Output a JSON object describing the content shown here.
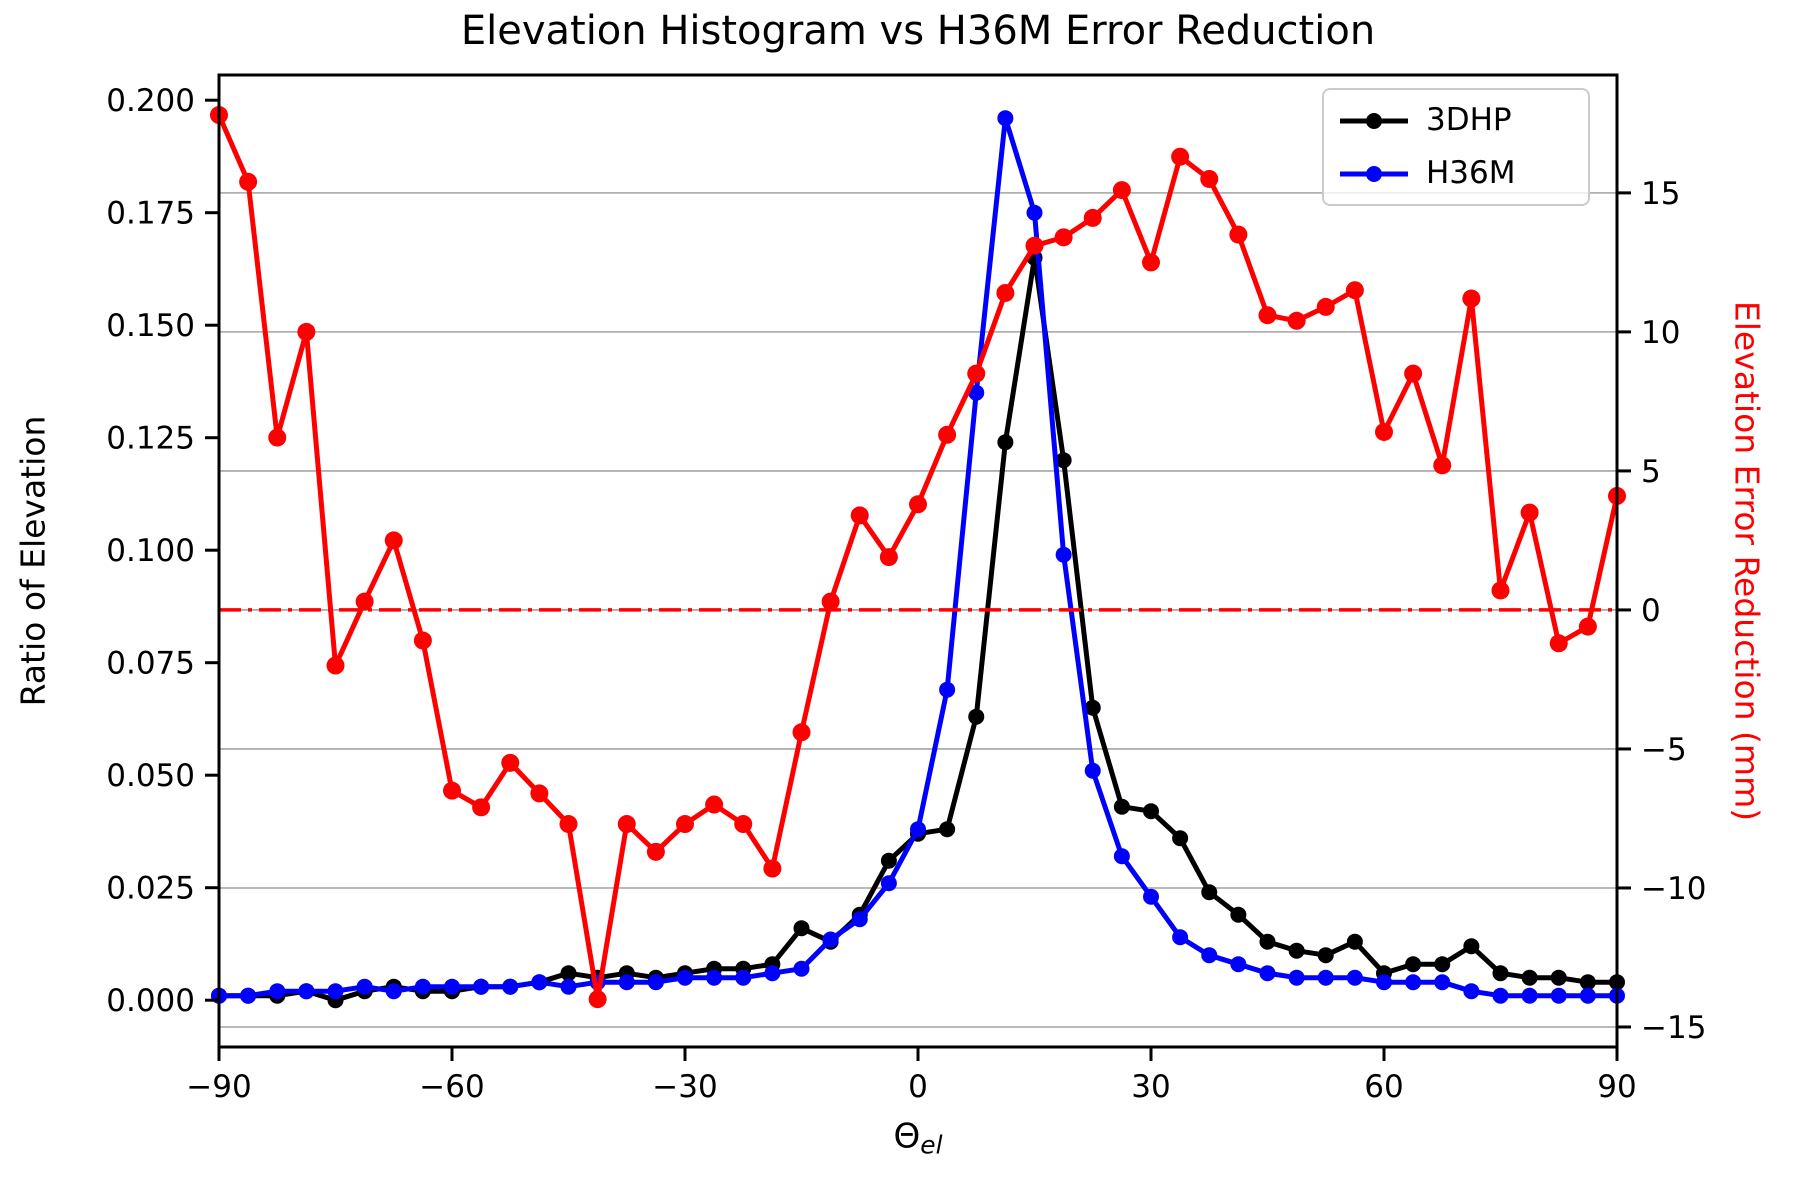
{
  "colors": {
    "series_3dhp": "#000000",
    "series_h36m": "#0000ff",
    "series_error": "#ff0000",
    "grid": "#b0b0b0",
    "axis": "#000000",
    "legend_border": "#cbcbcb",
    "background": "#ffffff"
  },
  "chart_data": {
    "type": "line",
    "title": "Elevation Histogram vs H36M Error Reduction",
    "xlabel": "Theta_el",
    "xlabel_base": "Θ",
    "xlabel_sub": "el",
    "ylabel_left": "Ratio of Elevation",
    "ylabel_right": "Elevation Error Reduction (mm)",
    "legend_position": "upper right",
    "grid": "horizontal gray lines at right-axis ticks",
    "x_range": [
      -90,
      90
    ],
    "y_left_range": [
      -0.0104,
      0.2056
    ],
    "y_right_range": [
      -15.72,
      19.24
    ],
    "x_tick_values": [
      -90,
      -60,
      -30,
      0,
      30,
      60,
      90
    ],
    "x_tick_labels": [
      "−90",
      "−60",
      "−30",
      "0",
      "30",
      "60",
      "90"
    ],
    "y_left_tick_values": [
      0.0,
      0.025,
      0.05,
      0.075,
      0.1,
      0.125,
      0.15,
      0.175,
      0.2
    ],
    "y_left_tick_labels": [
      "0.000",
      "0.025",
      "0.050",
      "0.075",
      "0.100",
      "0.125",
      "0.150",
      "0.175",
      "0.200"
    ],
    "y_right_tick_values": [
      -15,
      -10,
      -5,
      0,
      5,
      10,
      15
    ],
    "y_right_tick_labels": [
      "−15",
      "−10",
      "−5",
      "0",
      "5",
      "10",
      "15"
    ],
    "x": [
      -90,
      -86.25,
      -82.5,
      -78.75,
      -75,
      -71.25,
      -67.5,
      -63.75,
      -60,
      -56.25,
      -52.5,
      -48.75,
      -45,
      -41.25,
      -37.5,
      -33.75,
      -30,
      -26.25,
      -22.5,
      -18.75,
      -15,
      -11.25,
      -7.5,
      -3.75,
      0,
      3.75,
      7.5,
      11.25,
      15,
      18.75,
      22.5,
      26.25,
      30,
      33.75,
      37.5,
      41.25,
      45,
      48.75,
      52.5,
      56.25,
      60,
      63.75,
      67.5,
      71.25,
      75,
      78.75,
      82.5,
      86.25,
      90
    ],
    "series": [
      {
        "name": "3DHP",
        "axis": "left",
        "color": "#000000",
        "marker_radius": 8,
        "values": [
          0.001,
          0.001,
          0.001,
          0.002,
          0.0,
          0.002,
          0.003,
          0.002,
          0.002,
          0.003,
          0.003,
          0.004,
          0.006,
          0.005,
          0.006,
          0.005,
          0.006,
          0.007,
          0.007,
          0.008,
          0.016,
          0.013,
          0.019,
          0.031,
          0.037,
          0.038,
          0.063,
          0.124,
          0.165,
          0.12,
          0.065,
          0.043,
          0.042,
          0.036,
          0.024,
          0.019,
          0.013,
          0.011,
          0.01,
          0.013,
          0.006,
          0.008,
          0.008,
          0.012,
          0.006,
          0.005,
          0.005,
          0.004,
          0.004
        ]
      },
      {
        "name": "H36M",
        "axis": "left",
        "color": "#0000ff",
        "marker_radius": 8,
        "values": [
          0.001,
          0.001,
          0.002,
          0.002,
          0.002,
          0.003,
          0.002,
          0.003,
          0.003,
          0.003,
          0.003,
          0.004,
          0.003,
          0.004,
          0.004,
          0.004,
          0.005,
          0.005,
          0.005,
          0.006,
          0.007,
          0.0135,
          0.018,
          0.026,
          0.038,
          0.069,
          0.135,
          0.196,
          0.175,
          0.099,
          0.051,
          0.032,
          0.023,
          0.014,
          0.01,
          0.008,
          0.006,
          0.005,
          0.005,
          0.005,
          0.004,
          0.004,
          0.004,
          0.002,
          0.001,
          0.001,
          0.001,
          0.001,
          0.001
        ]
      },
      {
        "name": "Elevation Error Reduction",
        "axis": "right",
        "color": "#ff0000",
        "marker_radius": 9,
        "in_legend": false,
        "values": [
          17.8,
          15.4,
          6.2,
          10.0,
          -2.0,
          0.3,
          2.5,
          -1.1,
          -6.5,
          -7.1,
          -5.5,
          -6.6,
          -7.7,
          -14.0,
          -7.7,
          -8.7,
          -7.7,
          -7.0,
          -7.7,
          -9.3,
          -4.4,
          0.3,
          3.4,
          1.9,
          3.8,
          6.3,
          8.5,
          11.4,
          13.1,
          13.4,
          14.1,
          15.1,
          12.5,
          16.3,
          15.5,
          13.5,
          10.6,
          10.4,
          10.9,
          11.5,
          6.4,
          8.5,
          5.2,
          11.2,
          0.7,
          3.5,
          -1.2,
          -0.6,
          4.1
        ]
      }
    ],
    "reference_line": {
      "axis": "right",
      "value": 0,
      "style": "dash-dot",
      "color": "#ff0000"
    }
  }
}
